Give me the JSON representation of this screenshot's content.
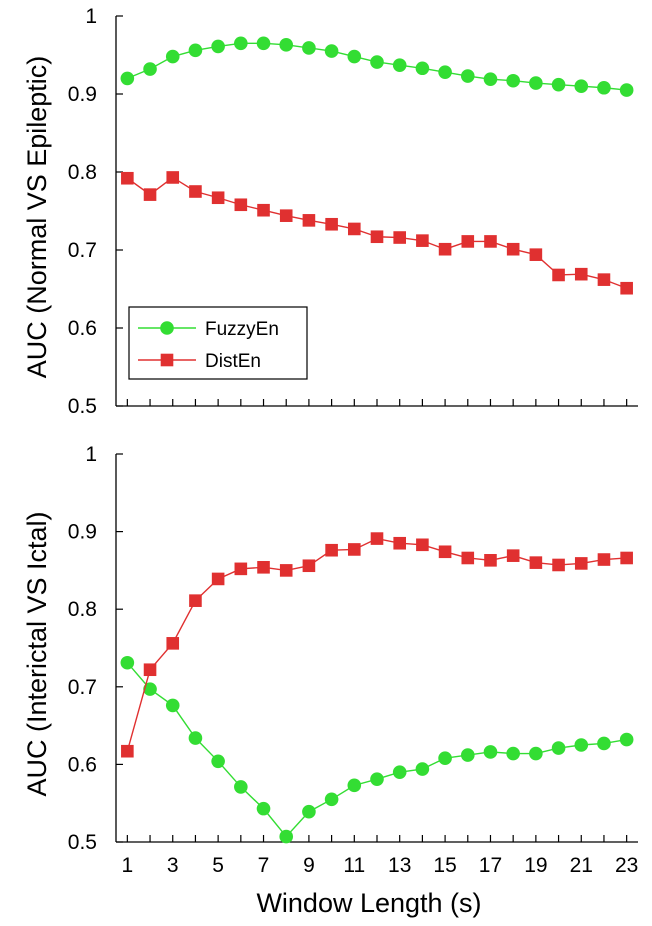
{
  "chart_data": [
    {
      "type": "line",
      "title": "",
      "xlabel": "",
      "ylabel": "AUC (Normal VS Epileptic)",
      "xlim": [
        0.5,
        23.5
      ],
      "ylim": [
        0.5,
        1
      ],
      "xticks": [
        1,
        3,
        5,
        7,
        9,
        11,
        13,
        15,
        17,
        19,
        21,
        23
      ],
      "yticks": [
        0.5,
        0.6,
        0.7,
        0.8,
        0.9,
        1
      ],
      "ytick_labels": [
        "0.5",
        "0.6",
        "0.7",
        "0.8",
        "0.9",
        "1"
      ],
      "x": [
        1,
        2,
        3,
        4,
        5,
        6,
        7,
        8,
        9,
        10,
        11,
        12,
        13,
        14,
        15,
        16,
        17,
        18,
        19,
        20,
        21,
        22,
        23
      ],
      "legend": {
        "position": "lower-left"
      },
      "series": [
        {
          "name": "FuzzyEn",
          "color": "#33dd33",
          "marker": "circle",
          "values": [
            0.92,
            0.932,
            0.948,
            0.956,
            0.961,
            0.965,
            0.965,
            0.963,
            0.959,
            0.955,
            0.948,
            0.941,
            0.937,
            0.933,
            0.928,
            0.923,
            0.919,
            0.917,
            0.914,
            0.912,
            0.91,
            0.908,
            0.905
          ]
        },
        {
          "name": "DistEn",
          "color": "#e03030",
          "marker": "square",
          "values": [
            0.792,
            0.771,
            0.793,
            0.775,
            0.767,
            0.758,
            0.751,
            0.744,
            0.738,
            0.733,
            0.727,
            0.717,
            0.716,
            0.712,
            0.701,
            0.711,
            0.711,
            0.701,
            0.694,
            0.668,
            0.669,
            0.662,
            0.651
          ]
        }
      ]
    },
    {
      "type": "line",
      "title": "",
      "xlabel": "Window Length (s)",
      "ylabel": "AUC (Interictal VS Ictal)",
      "xlim": [
        0.5,
        23.5
      ],
      "ylim": [
        0.5,
        1
      ],
      "xticks": [
        1,
        3,
        5,
        7,
        9,
        11,
        13,
        15,
        17,
        19,
        21,
        23
      ],
      "yticks": [
        0.5,
        0.6,
        0.7,
        0.8,
        0.9,
        1
      ],
      "ytick_labels": [
        "0.5",
        "0.6",
        "0.7",
        "0.8",
        "0.9",
        "1"
      ],
      "x": [
        1,
        2,
        3,
        4,
        5,
        6,
        7,
        8,
        9,
        10,
        11,
        12,
        13,
        14,
        15,
        16,
        17,
        18,
        19,
        20,
        21,
        22,
        23
      ],
      "series": [
        {
          "name": "FuzzyEn",
          "color": "#33dd33",
          "marker": "circle",
          "values": [
            0.731,
            0.697,
            0.676,
            0.634,
            0.604,
            0.571,
            0.543,
            0.507,
            0.539,
            0.555,
            0.573,
            0.581,
            0.59,
            0.594,
            0.608,
            0.612,
            0.616,
            0.614,
            0.614,
            0.621,
            0.625,
            0.627,
            0.632
          ]
        },
        {
          "name": "DistEn",
          "color": "#e03030",
          "marker": "square",
          "values": [
            0.617,
            0.722,
            0.756,
            0.811,
            0.839,
            0.852,
            0.854,
            0.85,
            0.856,
            0.876,
            0.877,
            0.891,
            0.885,
            0.883,
            0.874,
            0.866,
            0.863,
            0.869,
            0.86,
            0.857,
            0.859,
            0.864,
            0.866
          ]
        }
      ]
    }
  ]
}
